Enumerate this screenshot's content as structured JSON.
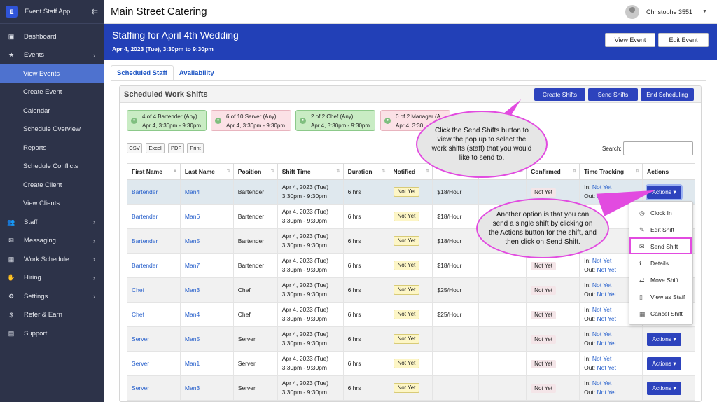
{
  "app": {
    "name": "Event Staff App",
    "logo_letter": "E"
  },
  "sidebar": {
    "items": [
      {
        "label": "Dashboard",
        "icon": "dashboard-icon",
        "glyph": "▣"
      },
      {
        "label": "Events",
        "icon": "star-icon",
        "glyph": "★",
        "chevron": "›"
      },
      {
        "label": "View Events",
        "sub": true,
        "active": true
      },
      {
        "label": "Create Event",
        "sub": true
      },
      {
        "label": "Calendar",
        "sub": true
      },
      {
        "label": "Schedule Overview",
        "sub": true
      },
      {
        "label": "Reports",
        "sub": true
      },
      {
        "label": "Schedule Conflicts",
        "sub": true
      },
      {
        "label": "Create Client",
        "sub": true
      },
      {
        "label": "View Clients",
        "sub": true
      },
      {
        "label": "Staff",
        "icon": "users-icon",
        "glyph": "👥",
        "chevron": "›"
      },
      {
        "label": "Messaging",
        "icon": "envelope-icon",
        "glyph": "✉",
        "chevron": "›"
      },
      {
        "label": "Work Schedule",
        "icon": "calendar-icon",
        "glyph": "▦",
        "chevron": "›"
      },
      {
        "label": "Hiring",
        "icon": "hand-icon",
        "glyph": "✋",
        "chevron": "›"
      },
      {
        "label": "Settings",
        "icon": "gear-icon",
        "glyph": "⚙",
        "chevron": "›"
      },
      {
        "label": "Refer & Earn",
        "icon": "dollar-icon",
        "glyph": "$"
      },
      {
        "label": "Support",
        "icon": "support-icon",
        "glyph": "▤"
      }
    ]
  },
  "topbar": {
    "company": "Main Street Catering",
    "user": "Christophe 3551"
  },
  "header": {
    "title": "Staffing for April 4th Wedding",
    "subtitle": "Apr 4, 2023 (Tue), 3:30pm to 9:30pm",
    "view_event": "View Event",
    "edit_event": "Edit Event"
  },
  "tabs": [
    "Scheduled Staff",
    "Availability"
  ],
  "card": {
    "title": "Scheduled Work Shifts",
    "create_shifts": "Create Shifts",
    "send_shifts": "Send Shifts",
    "end_scheduling": "End Scheduling"
  },
  "summaries": [
    {
      "line1": "4 of 4 Bartender (Any)",
      "line2": "Apr 4, 3:30pm - 9:30pm",
      "status": "green"
    },
    {
      "line1": "6 of 10 Server (Any)",
      "line2": "Apr 4, 3:30pm - 9:30pm",
      "status": "pink"
    },
    {
      "line1": "2 of 2 Chef (Any)",
      "line2": "Apr 4, 3:30pm - 9:30pm",
      "status": "green"
    },
    {
      "line1": "0 of 2 Manager (A",
      "line2": "Apr 4, 3:30",
      "status": "pink"
    }
  ],
  "export_buttons": [
    "CSV",
    "Excel",
    "PDF",
    "Print"
  ],
  "search_label": "Search:",
  "table": {
    "headers": [
      "First Name",
      "Last Name",
      "Position",
      "Shift Time",
      "Duration",
      "Notified",
      "",
      "",
      "Confirmed",
      "Time Tracking",
      "Actions"
    ],
    "rows": [
      {
        "first": "Bartender",
        "last": "Man4",
        "position": "Bartender",
        "date": "Apr 4, 2023 (Tue)",
        "time": "3:30pm - 9:30pm",
        "duration": "6 hrs",
        "notified": "Not Yet",
        "rate": "$18/Hour",
        "confirmed": "Not Yet",
        "in": "Not Yet",
        "out": "Not Yet",
        "actions": "Actions"
      },
      {
        "first": "Bartender",
        "last": "Man6",
        "position": "Bartender",
        "date": "Apr 4, 2023 (Tue)",
        "time": "3:30pm - 9:30pm",
        "duration": "6 hrs",
        "notified": "Not Yet",
        "rate": "$18/Hour",
        "confirmed": "",
        "in": "",
        "out": "",
        "actions": ""
      },
      {
        "first": "Bartender",
        "last": "Man5",
        "position": "Bartender",
        "date": "Apr 4, 2023 (Tue)",
        "time": "3:30pm - 9:30pm",
        "duration": "6 hrs",
        "notified": "Not Yet",
        "rate": "$18/Hour",
        "confirmed": "",
        "in": "",
        "out": "",
        "actions": ""
      },
      {
        "first": "Bartender",
        "last": "Man7",
        "position": "Bartender",
        "date": "Apr 4, 2023 (Tue)",
        "time": "3:30pm - 9:30pm",
        "duration": "6 hrs",
        "notified": "Not Yet",
        "rate": "$18/Hour",
        "confirmed": "Not Yet",
        "in": "Not Yet",
        "out": "Not Yet",
        "actions": ""
      },
      {
        "first": "Chef",
        "last": "Man3",
        "position": "Chef",
        "date": "Apr 4, 2023 (Tue)",
        "time": "3:30pm - 9:30pm",
        "duration": "6 hrs",
        "notified": "Not Yet",
        "rate": "$25/Hour",
        "confirmed": "Not Yet",
        "in": "Not Yet",
        "out": "Not Yet",
        "actions": ""
      },
      {
        "first": "Chef",
        "last": "Man4",
        "position": "Chef",
        "date": "Apr 4, 2023 (Tue)",
        "time": "3:30pm - 9:30pm",
        "duration": "6 hrs",
        "notified": "Not Yet",
        "rate": "$25/Hour",
        "confirmed": "Not Yet",
        "in": "Not Yet",
        "out": "Not Yet",
        "actions": ""
      },
      {
        "first": "Server",
        "last": "Man5",
        "position": "Server",
        "date": "Apr 4, 2023 (Tue)",
        "time": "3:30pm - 9:30pm",
        "duration": "6 hrs",
        "notified": "Not Yet",
        "rate": "",
        "confirmed": "Not Yet",
        "in": "Not Yet",
        "out": "Not Yet",
        "actions": "Actions"
      },
      {
        "first": "Server",
        "last": "Man1",
        "position": "Server",
        "date": "Apr 4, 2023 (Tue)",
        "time": "3:30pm - 9:30pm",
        "duration": "6 hrs",
        "notified": "Not Yet",
        "rate": "",
        "confirmed": "Not Yet",
        "in": "Not Yet",
        "out": "Not Yet",
        "actions": "Actions"
      },
      {
        "first": "Server",
        "last": "Man3",
        "position": "Server",
        "date": "Apr 4, 2023 (Tue)",
        "time": "3:30pm - 9:30pm",
        "duration": "6 hrs",
        "notified": "Not Yet",
        "rate": "",
        "confirmed": "Not Yet",
        "in": "Not Yet",
        "out": "Not Yet",
        "actions": "Actions"
      }
    ],
    "in_label": "In:",
    "out_label": "Out:"
  },
  "dropdown": [
    {
      "label": "Clock In",
      "icon": "clock-icon",
      "glyph": "◷"
    },
    {
      "label": "Edit Shift",
      "icon": "edit-icon",
      "glyph": "✎"
    },
    {
      "label": "Send Shift",
      "icon": "envelope-icon",
      "glyph": "✉"
    },
    {
      "label": "Details",
      "icon": "info-icon",
      "glyph": "ℹ"
    },
    {
      "label": "Move Shift",
      "icon": "exchange-icon",
      "glyph": "⇄"
    },
    {
      "label": "View as Staff",
      "icon": "id-badge-icon",
      "glyph": "▯"
    },
    {
      "label": "Cancel Shift",
      "icon": "calendar-x-icon",
      "glyph": "▦"
    }
  ],
  "callouts": {
    "send_shifts": "Click the Send Shifts button to view the pop up to select the work shifts (staff) that you would like to send to.",
    "send_single": "Another option is that you can send a single shift by clicking on the Actions button for the shift, and then click on Send Shift."
  },
  "colors": {
    "sidebar": "#2d3349",
    "header": "#2240b7",
    "accent": "#2d43bd",
    "highlight": "#e24be0"
  }
}
